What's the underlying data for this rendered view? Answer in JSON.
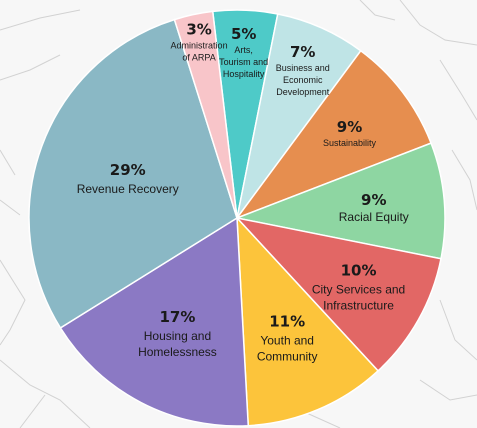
{
  "chart_data": {
    "type": "pie",
    "start_angle_deg": -6.7,
    "direction": "clockwise",
    "slices": [
      {
        "label": [
          "Arts,",
          "Tourism and",
          "Hospitality"
        ],
        "value": 5,
        "pct_text": "5%",
        "color": "#4ecac8"
      },
      {
        "label": [
          "Business and",
          "Economic",
          "Development"
        ],
        "value": 7,
        "pct_text": "7%",
        "color": "#bfe4e6"
      },
      {
        "label": [
          "Sustainability"
        ],
        "value": 9,
        "pct_text": "9%",
        "color": "#e68e4f"
      },
      {
        "label": [
          "Racial Equity"
        ],
        "value": 9,
        "pct_text": "9%",
        "color": "#8ed6a2"
      },
      {
        "label": [
          "City Services and",
          "Infrastructure"
        ],
        "value": 10,
        "pct_text": "10%",
        "color": "#e26765"
      },
      {
        "label": [
          "Youth and",
          "Community"
        ],
        "value": 11,
        "pct_text": "11%",
        "color": "#fcc43b"
      },
      {
        "label": [
          "Housing and",
          "Homelessness"
        ],
        "value": 17,
        "pct_text": "17%",
        "color": "#8b79c4"
      },
      {
        "label": [
          "Revenue Recovery"
        ],
        "value": 29,
        "pct_text": "29%",
        "color": "#8ab8c5"
      },
      {
        "label": [
          "Administration",
          "of ARPA"
        ],
        "value": 3,
        "pct_text": "3%",
        "color": "#f8c5c9"
      }
    ]
  }
}
